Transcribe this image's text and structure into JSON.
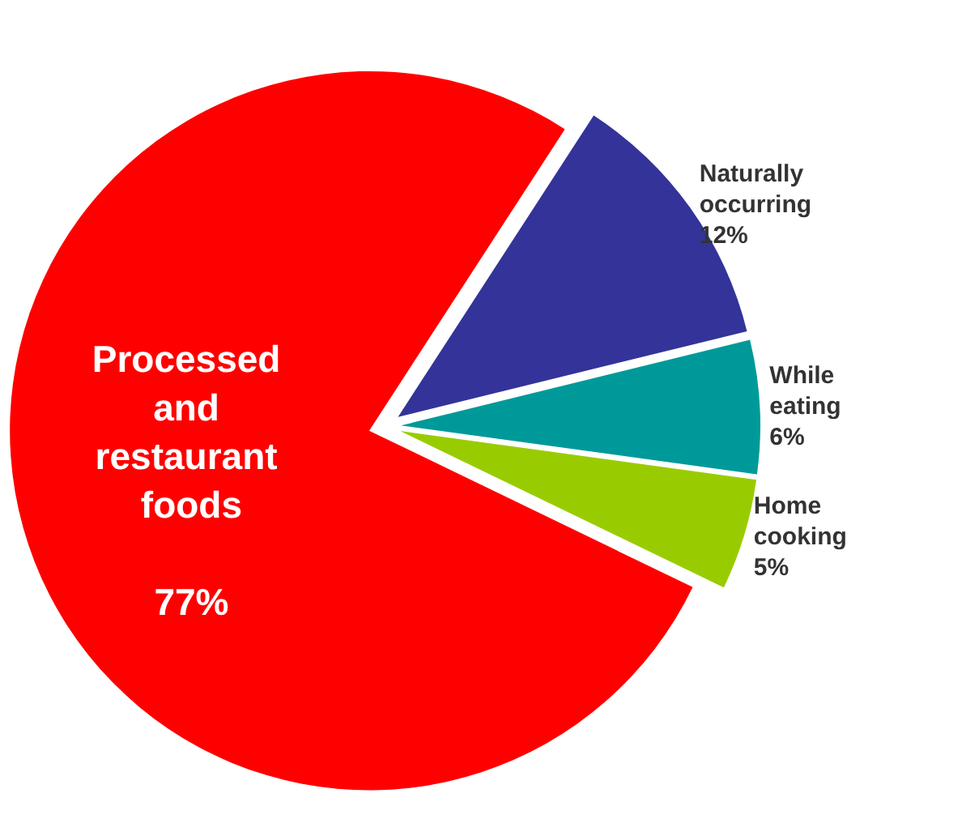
{
  "chart_data": {
    "type": "pie",
    "categories": [
      "Naturally occurring",
      "While eating",
      "Home cooking",
      "Processed and restaurant foods"
    ],
    "values": [
      12,
      6,
      5,
      77
    ],
    "value_labels": [
      "12%",
      "6%",
      "5%",
      "77%"
    ],
    "colors": [
      "#333399",
      "#009999",
      "#99cc00",
      "#ff0000"
    ]
  }
}
